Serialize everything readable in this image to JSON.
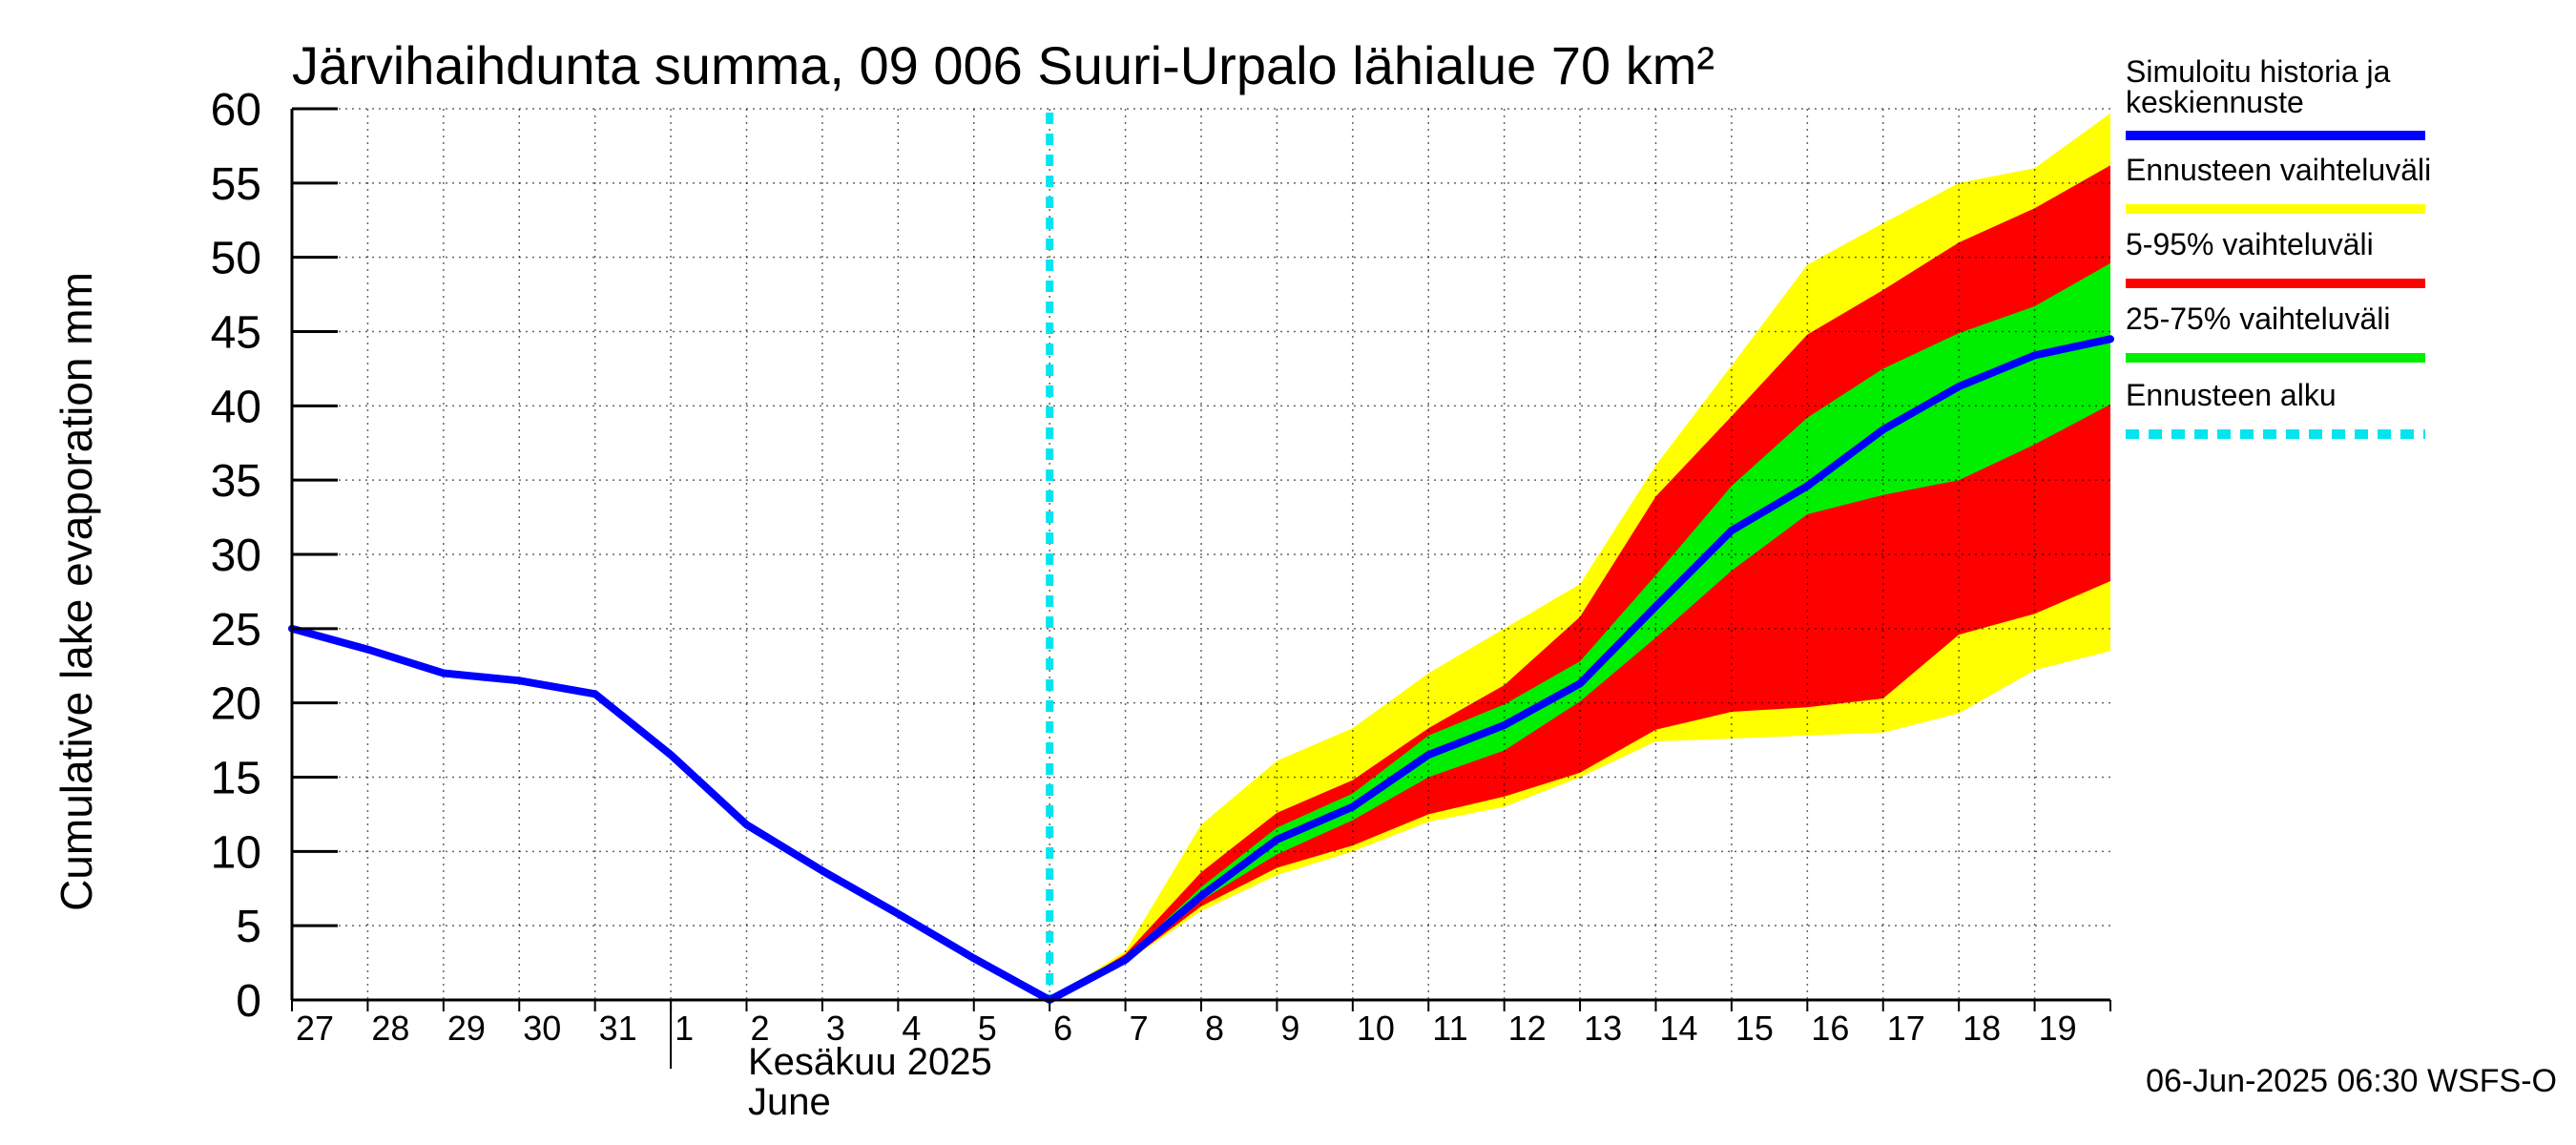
{
  "chart_data": {
    "type": "area",
    "title": "Järvihaihdunta summa, 09 006 Suuri-Urpalo lähialue 70 km²",
    "ylabel": "Cumulative lake evaporation   mm",
    "ylim": [
      0,
      60
    ],
    "yticks": [
      0,
      5,
      10,
      15,
      20,
      25,
      30,
      35,
      40,
      45,
      50,
      55,
      60
    ],
    "xlim": [
      0,
      24
    ],
    "x_tick_labels": [
      "27",
      "28",
      "29",
      "30",
      "31",
      "1",
      "2",
      "3",
      "4",
      "5",
      "6",
      "7",
      "8",
      "9",
      "10",
      "11",
      "12",
      "13",
      "14",
      "15",
      "16",
      "17",
      "18",
      "19"
    ],
    "month_label_fi": "Kesäkuu  2025",
    "month_label_en": "June",
    "forecast_start_x": 10,
    "series": [
      {
        "name": "Simuloitu historia ja keskiennuste",
        "color": "#0000ff",
        "x": [
          0,
          1,
          2,
          3,
          4,
          5,
          6,
          7,
          8,
          9,
          10,
          11,
          12,
          13,
          14,
          15,
          16,
          17,
          18,
          19,
          20,
          21,
          22,
          23,
          24
        ],
        "y": [
          25,
          23.6,
          22,
          21.5,
          20.6,
          16.5,
          11.8,
          8.7,
          5.8,
          2.8,
          0,
          2.7,
          7,
          10.8,
          13,
          16.5,
          18.5,
          21.3,
          26.5,
          31.6,
          34.6,
          38.4,
          41.3,
          43.4,
          44.5
        ]
      }
    ],
    "bands": [
      {
        "name": "Ennusteen vaihteluväli",
        "color": "#ffff00",
        "x": [
          10,
          11,
          12,
          13,
          14,
          15,
          16,
          17,
          18,
          19,
          20,
          21,
          22,
          23,
          24
        ],
        "low": [
          0,
          2.5,
          6,
          8.4,
          10,
          12,
          13,
          15,
          17.4,
          17.6,
          17.8,
          18,
          19.3,
          22.2,
          23.5
        ],
        "high": [
          0,
          3.3,
          11.8,
          16.1,
          18.3,
          22,
          25,
          28,
          36,
          42.7,
          49.5,
          52.3,
          55,
          56,
          59.7
        ]
      },
      {
        "name": "5-95% vaihteluväli",
        "color": "#ff0000",
        "x": [
          10,
          11,
          12,
          13,
          14,
          15,
          16,
          17,
          18,
          19,
          20,
          21,
          22,
          23,
          24
        ],
        "low": [
          0,
          2.5,
          6.3,
          8.9,
          10.4,
          12.5,
          13.7,
          15.3,
          18.2,
          19.4,
          19.7,
          20.3,
          24.6,
          26,
          28.2
        ],
        "high": [
          0,
          3.1,
          8.6,
          12.6,
          14.8,
          18.3,
          21.2,
          25.8,
          33.9,
          39.3,
          44.8,
          47.8,
          51,
          53.3,
          56.2
        ]
      },
      {
        "name": "25-75% vaihteluväli",
        "color": "#00ee00",
        "x": [
          10,
          11,
          12,
          13,
          14,
          15,
          16,
          17,
          18,
          19,
          20,
          21,
          22,
          23,
          24
        ],
        "low": [
          0,
          2.6,
          6.7,
          9.8,
          12.1,
          15,
          16.8,
          20.1,
          24.4,
          28.9,
          32.7,
          34,
          35,
          37.4,
          40.1
        ],
        "high": [
          0,
          2.8,
          7.6,
          11.6,
          13.9,
          17.8,
          19.9,
          22.8,
          28.6,
          34.6,
          39.2,
          42.5,
          44.9,
          46.7,
          49.6
        ]
      }
    ],
    "legend": [
      {
        "label": "Simuloitu historia ja keskiennuste",
        "color": "#0000ff",
        "style": "solid"
      },
      {
        "label": "Ennusteen vaihteluväli",
        "color": "#ffff00",
        "style": "solid"
      },
      {
        "label": "5-95% vaihteluväli",
        "color": "#ff0000",
        "style": "solid"
      },
      {
        "label": "25-75% vaihteluväli",
        "color": "#00ee00",
        "style": "solid"
      },
      {
        "label": "Ennusteen alku",
        "color": "#00e5ee",
        "style": "dashed"
      }
    ],
    "footer": "06-Jun-2025 06:30 WSFS-O"
  }
}
